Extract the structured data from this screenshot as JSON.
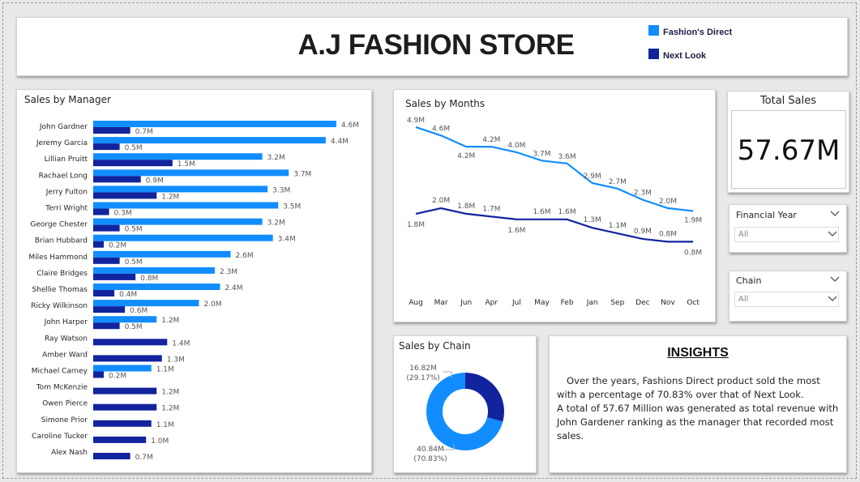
{
  "header": {
    "title": "A.J FASHION STORE"
  },
  "legend": [
    {
      "name": "Fashion's Direct",
      "color": "#118dff"
    },
    {
      "name": "Next Look",
      "color": "#12239e"
    }
  ],
  "colors": {
    "direct": "#118dff",
    "nextlook": "#12239e"
  },
  "managers_chart": {
    "title": "Sales by Manager",
    "chart_data": {
      "type": "bar",
      "orientation": "horizontal",
      "categories": [
        "John Gardner",
        "Jeremy Garcia",
        "Lillian Pruitt",
        "Rachael Long",
        "Jerry Fulton",
        "Terri Wright",
        "George Chester",
        "Brian Hubbard",
        "Miles Hammond",
        "Claire Bridges",
        "Shellie Thomas",
        "Ricky Wilkinson",
        "John Harper",
        "Ray Watson",
        "Amber Ward",
        "Michael Carney",
        "Tom McKenzie",
        "Owen Pierce",
        "Simone Prior",
        "Caroline Tucker",
        "Alex Nash"
      ],
      "series": [
        {
          "name": "Fashion's Direct",
          "values": [
            4.6,
            4.4,
            3.2,
            3.7,
            3.3,
            3.5,
            3.2,
            3.4,
            2.6,
            2.3,
            2.4,
            2.0,
            1.2,
            null,
            null,
            1.1,
            null,
            null,
            null,
            null,
            null
          ],
          "labels": [
            "4.6M",
            "4.4M",
            "3.2M",
            "3.7M",
            "3.3M",
            "3.5M",
            "3.2M",
            "3.4M",
            "2.6M",
            "2.3M",
            "2.4M",
            "2.0M",
            "1.2M",
            "",
            "",
            "1.1M",
            "",
            "",
            "",
            "",
            ""
          ]
        },
        {
          "name": "Next Look",
          "values": [
            0.7,
            0.5,
            1.5,
            0.9,
            1.2,
            0.3,
            0.5,
            0.2,
            0.5,
            0.8,
            0.4,
            0.6,
            0.5,
            1.4,
            1.3,
            0.2,
            1.2,
            1.2,
            1.1,
            1.0,
            0.7
          ],
          "labels": [
            "0.7M",
            "0.5M",
            "1.5M",
            "0.9M",
            "1.2M",
            "0.3M",
            "0.5M",
            "0.2M",
            "0.5M",
            "0.8M",
            "0.4M",
            "0.6M",
            "0.5M",
            "1.4M",
            "1.3M",
            "0.2M",
            "1.2M",
            "1.2M",
            "1.1M",
            "1.0M",
            "0.7M"
          ]
        }
      ]
    }
  },
  "months_chart": {
    "title": "Sales by Months",
    "chart_data": {
      "type": "line",
      "x": [
        "Aug",
        "Mar",
        "Jun",
        "Apr",
        "Jul",
        "May",
        "Feb",
        "Jan",
        "Sep",
        "Dec",
        "Nov",
        "Oct"
      ],
      "series": [
        {
          "name": "Fashion's Direct",
          "values": [
            4.9,
            4.6,
            4.2,
            4.2,
            4.0,
            3.7,
            3.6,
            2.9,
            2.7,
            2.3,
            2.0,
            1.9
          ],
          "labels": [
            "4.9M",
            "4.6M",
            "4.2M",
            "4.2M",
            "4.0M",
            "3.7M",
            "3.6M",
            "2.9M",
            "2.7M",
            "2.3M",
            "2.0M",
            "1.9M"
          ]
        },
        {
          "name": "Next Look",
          "values": [
            1.8,
            2.0,
            1.8,
            1.7,
            1.6,
            1.6,
            1.6,
            1.3,
            1.1,
            0.9,
            0.8,
            0.8
          ],
          "labels": [
            "1.8M",
            "2.0M",
            "1.8M",
            "1.7M",
            "1.6M",
            "1.6M",
            "1.6M",
            "1.3M",
            "1.1M",
            "0.9M",
            "0.8M",
            "0.8M"
          ]
        }
      ]
    }
  },
  "kpi": {
    "title": "Total Sales",
    "value": "57.67M"
  },
  "slicers": [
    {
      "label": "Financial Year",
      "value": "All"
    },
    {
      "label": "Chain",
      "value": "All"
    }
  ],
  "chain_chart": {
    "title": "Sales by Chain",
    "chart_data": {
      "type": "pie",
      "variant": "donut",
      "slices": [
        {
          "name": "Next Look",
          "value": 16.82,
          "label": "16.82M",
          "pct": "(29.17%)",
          "color": "#12239e"
        },
        {
          "name": "Fashion's Direct",
          "value": 40.84,
          "label": "40.84M",
          "pct": "(70.83%)",
          "color": "#118dff"
        }
      ]
    }
  },
  "insights": {
    "title": "INSIGHTS",
    "line1": "Over the years, Fashions Direct product sold the most with a percentage of 70.83% over that of Next Look.",
    "line2": "A total of 57.67 Million was generated as total revenue with John Gardener ranking as the manager that recorded most sales."
  }
}
